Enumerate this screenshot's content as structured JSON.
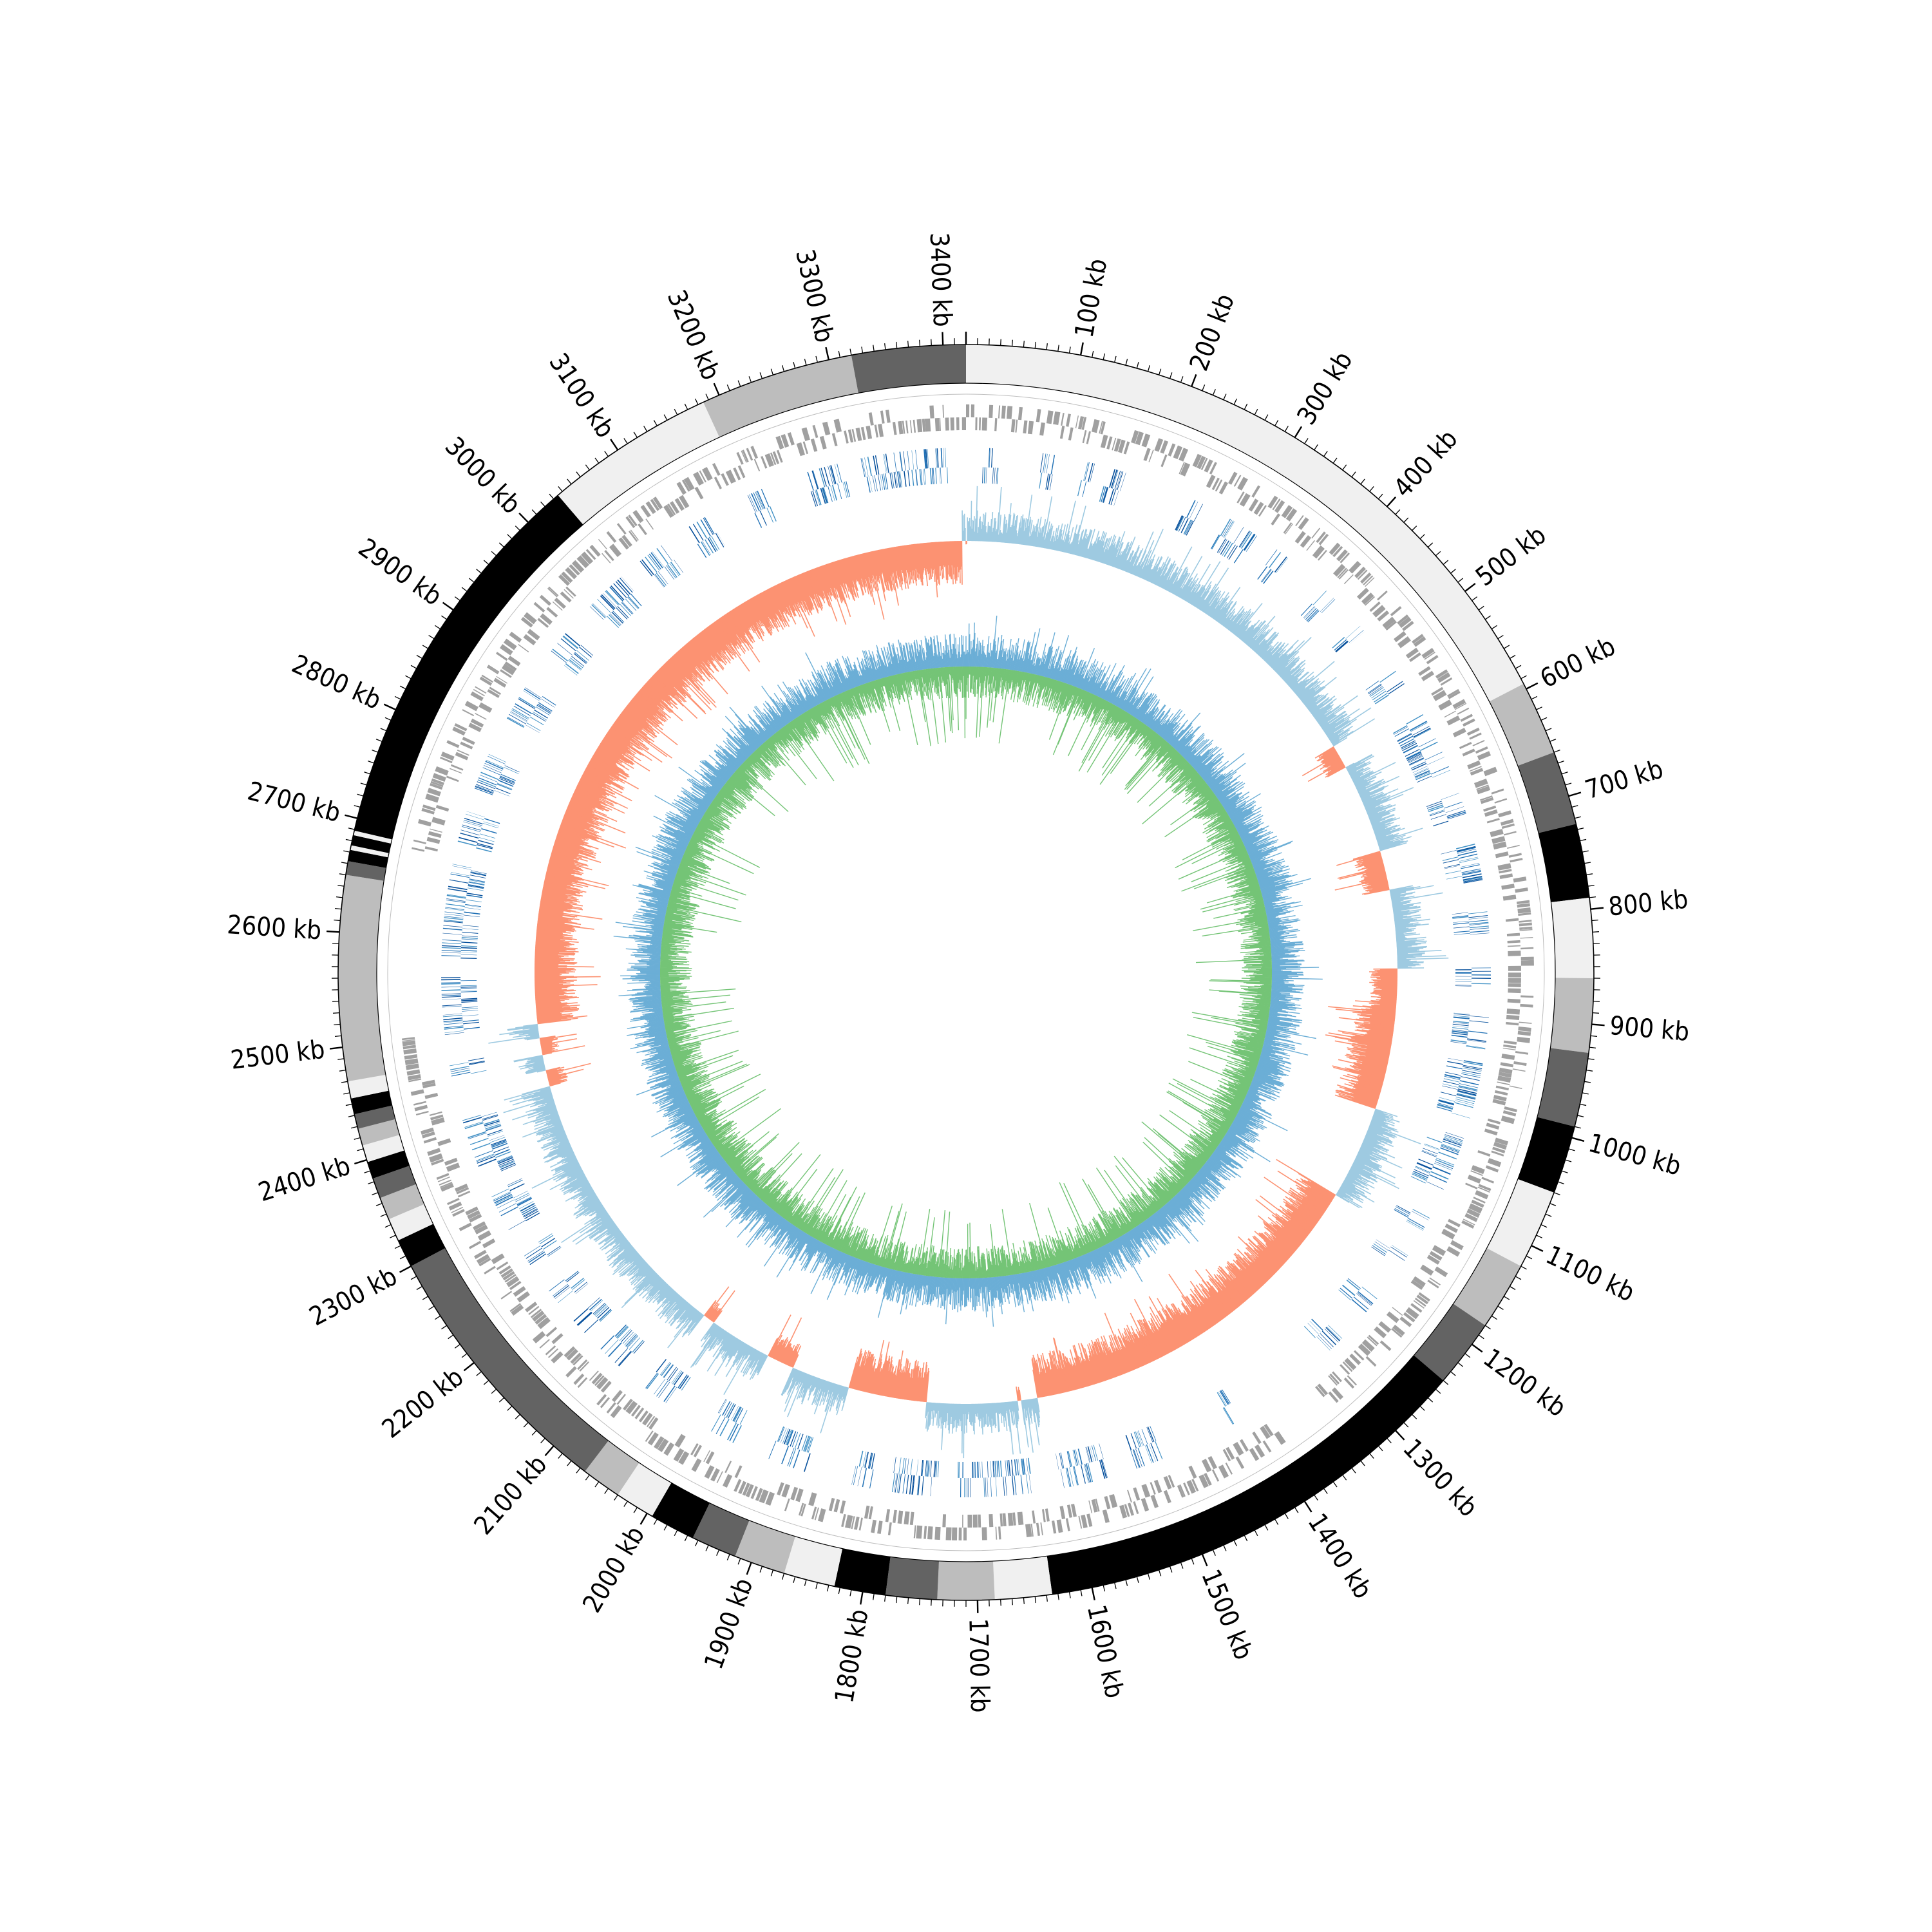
{
  "chart_data": {
    "type": "circular-genome",
    "genome_length_kb": 3420,
    "tick_labels": [
      {
        "pos_kb": 100,
        "label": "100 kb"
      },
      {
        "pos_kb": 200,
        "label": "200 kb"
      },
      {
        "pos_kb": 300,
        "label": "300 kb"
      },
      {
        "pos_kb": 400,
        "label": "400 kb"
      },
      {
        "pos_kb": 500,
        "label": "500 kb"
      },
      {
        "pos_kb": 600,
        "label": "600 kb"
      },
      {
        "pos_kb": 700,
        "label": "700 kb"
      },
      {
        "pos_kb": 800,
        "label": "800 kb"
      },
      {
        "pos_kb": 900,
        "label": "900 kb"
      },
      {
        "pos_kb": 1000,
        "label": "1000 kb"
      },
      {
        "pos_kb": 1100,
        "label": "1100 kb"
      },
      {
        "pos_kb": 1200,
        "label": "1200 kb"
      },
      {
        "pos_kb": 1300,
        "label": "1300 kb"
      },
      {
        "pos_kb": 1400,
        "label": "1400 kb"
      },
      {
        "pos_kb": 1500,
        "label": "1500 kb"
      },
      {
        "pos_kb": 1600,
        "label": "1600 kb"
      },
      {
        "pos_kb": 1700,
        "label": "1700 kb"
      },
      {
        "pos_kb": 1800,
        "label": "1800 kb"
      },
      {
        "pos_kb": 1900,
        "label": "1900 kb"
      },
      {
        "pos_kb": 2000,
        "label": "2000 kb"
      },
      {
        "pos_kb": 2100,
        "label": "2100 kb"
      },
      {
        "pos_kb": 2200,
        "label": "2200 kb"
      },
      {
        "pos_kb": 2300,
        "label": "2300 kb"
      },
      {
        "pos_kb": 2400,
        "label": "2400 kb"
      },
      {
        "pos_kb": 2500,
        "label": "2500 kb"
      },
      {
        "pos_kb": 2600,
        "label": "2600 kb"
      },
      {
        "pos_kb": 2700,
        "label": "2700 kb"
      },
      {
        "pos_kb": 2800,
        "label": "2800 kb"
      },
      {
        "pos_kb": 2900,
        "label": "2900 kb"
      },
      {
        "pos_kb": 3000,
        "label": "3000 kb"
      },
      {
        "pos_kb": 3100,
        "label": "3100 kb"
      },
      {
        "pos_kb": 3200,
        "label": "3200 kb"
      },
      {
        "pos_kb": 3300,
        "label": "3300 kb"
      },
      {
        "pos_kb": 3400,
        "label": "3400 kb"
      }
    ],
    "contig_segments": [
      {
        "start_kb": 0,
        "end_kb": 595,
        "color": "#f0f0f0"
      },
      {
        "start_kb": 595,
        "end_kb": 660,
        "color": "#bdbdbd"
      },
      {
        "start_kb": 660,
        "end_kb": 725,
        "color": "#636363"
      },
      {
        "start_kb": 725,
        "end_kb": 790,
        "color": "#000000"
      },
      {
        "start_kb": 790,
        "end_kb": 860,
        "color": "#f0f0f0"
      },
      {
        "start_kb": 860,
        "end_kb": 925,
        "color": "#bdbdbd"
      },
      {
        "start_kb": 925,
        "end_kb": 990,
        "color": "#636363"
      },
      {
        "start_kb": 990,
        "end_kb": 1050,
        "color": "#000000"
      },
      {
        "start_kb": 1050,
        "end_kb": 1120,
        "color": "#f0f0f0"
      },
      {
        "start_kb": 1120,
        "end_kb": 1180,
        "color": "#bdbdbd"
      },
      {
        "start_kb": 1180,
        "end_kb": 1240,
        "color": "#636363"
      },
      {
        "start_kb": 1240,
        "end_kb": 1635,
        "color": "#000000"
      },
      {
        "start_kb": 1635,
        "end_kb": 1685,
        "color": "#f0f0f0"
      },
      {
        "start_kb": 1685,
        "end_kb": 1735,
        "color": "#bdbdbd"
      },
      {
        "start_kb": 1735,
        "end_kb": 1780,
        "color": "#636363"
      },
      {
        "start_kb": 1780,
        "end_kb": 1825,
        "color": "#000000"
      },
      {
        "start_kb": 1825,
        "end_kb": 1870,
        "color": "#f0f0f0"
      },
      {
        "start_kb": 1870,
        "end_kb": 1915,
        "color": "#bdbdbd"
      },
      {
        "start_kb": 1915,
        "end_kb": 1955,
        "color": "#636363"
      },
      {
        "start_kb": 1955,
        "end_kb": 1995,
        "color": "#000000"
      },
      {
        "start_kb": 1995,
        "end_kb": 2030,
        "color": "#f0f0f0"
      },
      {
        "start_kb": 2030,
        "end_kb": 2065,
        "color": "#bdbdbd"
      },
      {
        "start_kb": 2065,
        "end_kb": 2300,
        "color": "#636363"
      },
      {
        "start_kb": 2300,
        "end_kb": 2325,
        "color": "#000000"
      },
      {
        "start_kb": 2325,
        "end_kb": 2345,
        "color": "#f0f0f0"
      },
      {
        "start_kb": 2345,
        "end_kb": 2365,
        "color": "#bdbdbd"
      },
      {
        "start_kb": 2365,
        "end_kb": 2383,
        "color": "#636363"
      },
      {
        "start_kb": 2383,
        "end_kb": 2398,
        "color": "#000000"
      },
      {
        "start_kb": 2398,
        "end_kb": 2413,
        "color": "#f0f0f0"
      },
      {
        "start_kb": 2413,
        "end_kb": 2428,
        "color": "#bdbdbd"
      },
      {
        "start_kb": 2428,
        "end_kb": 2441,
        "color": "#636363"
      },
      {
        "start_kb": 2441,
        "end_kb": 2455,
        "color": "#000000"
      },
      {
        "start_kb": 2455,
        "end_kb": 2470,
        "color": "#f0f0f0"
      },
      {
        "start_kb": 2470,
        "end_kb": 2650,
        "color": "#bdbdbd"
      },
      {
        "start_kb": 2650,
        "end_kb": 2662,
        "color": "#636363"
      },
      {
        "start_kb": 2662,
        "end_kb": 2672,
        "color": "#000000"
      },
      {
        "start_kb": 2672,
        "end_kb": 2676,
        "color": "#f0f0f0"
      },
      {
        "start_kb": 2676,
        "end_kb": 2685,
        "color": "#000000"
      },
      {
        "start_kb": 2685,
        "end_kb": 2689,
        "color": "#f0f0f0"
      },
      {
        "start_kb": 2689,
        "end_kb": 3035,
        "color": "#000000"
      },
      {
        "start_kb": 3035,
        "end_kb": 3185,
        "color": "#f0f0f0"
      },
      {
        "start_kb": 3185,
        "end_kb": 3320,
        "color": "#bdbdbd"
      },
      {
        "start_kb": 3320,
        "end_kb": 3420,
        "color": "#636363"
      }
    ],
    "gene_blank_regions_kb": [
      [
        1330,
        1380
      ],
      [
        2500,
        2680
      ]
    ],
    "blue_feature_blocks_kb": [
      [
        18,
        35
      ],
      [
        80,
        95
      ],
      [
        125,
        135
      ],
      [
        150,
        170
      ],
      [
        240,
        255
      ],
      [
        285,
        320
      ],
      [
        345,
        360
      ],
      [
        410,
        425
      ],
      [
        460,
        470
      ],
      [
        520,
        540
      ],
      [
        575,
        640
      ],
      [
        665,
        690
      ],
      [
        720,
        760
      ],
      [
        790,
        815
      ],
      [
        850,
        870
      ],
      [
        900,
        935
      ],
      [
        950,
        1010
      ],
      [
        1030,
        1090
      ],
      [
        1120,
        1135
      ],
      [
        1165,
        1180
      ],
      [
        1220,
        1240
      ],
      [
        1275,
        1295
      ],
      [
        1410,
        1420
      ],
      [
        1500,
        1530
      ],
      [
        1560,
        1610
      ],
      [
        1640,
        1720
      ],
      [
        1740,
        1790
      ],
      [
        1810,
        1830
      ],
      [
        1880,
        1920
      ],
      [
        1960,
        1990
      ],
      [
        2035,
        2070
      ],
      [
        2100,
        2130
      ],
      [
        2150,
        2170
      ],
      [
        2190,
        2210
      ],
      [
        2240,
        2260
      ],
      [
        2285,
        2330
      ],
      [
        2345,
        2410
      ],
      [
        2455,
        2470
      ],
      [
        2500,
        2560
      ],
      [
        2580,
        2680
      ],
      [
        2700,
        2735
      ],
      [
        2760,
        2800
      ],
      [
        2840,
        2880
      ],
      [
        2920,
        2950
      ],
      [
        2985,
        3030
      ],
      [
        3055,
        3085
      ],
      [
        3115,
        3140
      ],
      [
        3185,
        3205
      ],
      [
        3250,
        3290
      ],
      [
        3310,
        3400
      ]
    ],
    "skew_red_regions_kb": [
      [
        0,
        1,
        0.08
      ],
      [
        555,
        585,
        0.45
      ],
      [
        700,
        750,
        0.55
      ],
      [
        850,
        900,
        0.55
      ],
      [
        900,
        1030,
        0.85
      ],
      [
        1150,
        1620,
        0.85
      ],
      [
        1640,
        1645,
        0.3
      ],
      [
        1760,
        1860,
        0.8
      ],
      [
        1935,
        1970,
        0.5
      ],
      [
        2050,
        2065,
        0.4
      ],
      [
        2420,
        2440,
        0.4
      ],
      [
        2460,
        2482,
        0.35
      ],
      [
        2500,
        3415,
        0.85
      ]
    ],
    "series": [
      {
        "name": "",
        "color": "#fc9272"
      },
      {
        "name": "",
        "color": "#9ecae1"
      },
      {
        "name": "",
        "color": "#74c476"
      },
      {
        "name": "",
        "color": "#6baed6"
      }
    ],
    "title": "",
    "xlabel": "",
    "ylabel": ""
  },
  "colors": {
    "gene_gray": "#a0a0a0",
    "feature_blue_dark": "#08519c",
    "feature_blue_mid": "#2171b5",
    "feature_blue_light": "#4292c6",
    "outline": "#000000"
  }
}
